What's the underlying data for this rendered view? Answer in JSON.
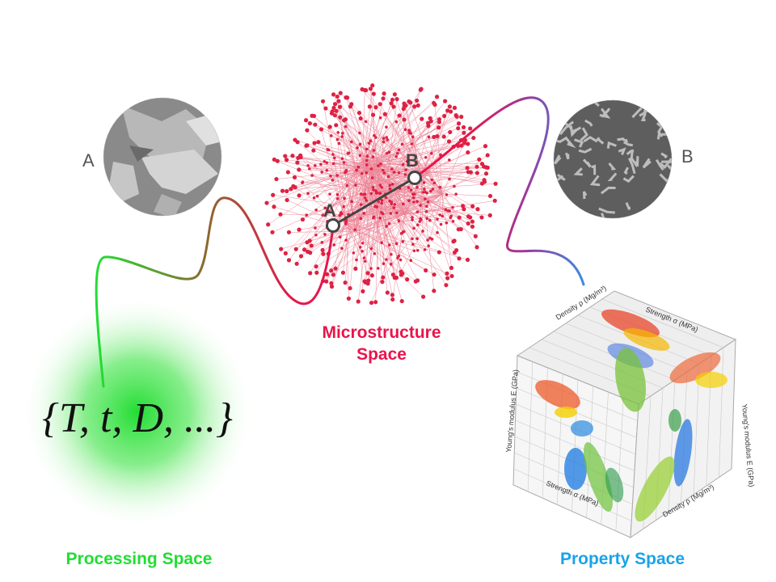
{
  "colors": {
    "processing": "#22dd33",
    "microstructure": "#e8154a",
    "property": "#1aa3e8",
    "network": "#dd2244",
    "node_ring": "#444444"
  },
  "processing": {
    "formula": "{T, t, D, ...}",
    "title": "Processing Space"
  },
  "microstructure": {
    "title_line1": "Microstructure",
    "title_line2": "Space",
    "point_a": "A",
    "point_b": "B"
  },
  "micrographs": {
    "left_label": "A",
    "right_label": "B"
  },
  "property": {
    "title": "Property Space",
    "cube_labels": {
      "top": "Density ρ (Mg/m³)",
      "left": "Young's modulus E (GPa)",
      "bottom_left": "Strength σ (MPa)",
      "bottom_right": "Density ρ (Mg/m³)",
      "right": "Young's modulus E (GPa)",
      "top_right": "Strength σ (MPa)"
    }
  }
}
